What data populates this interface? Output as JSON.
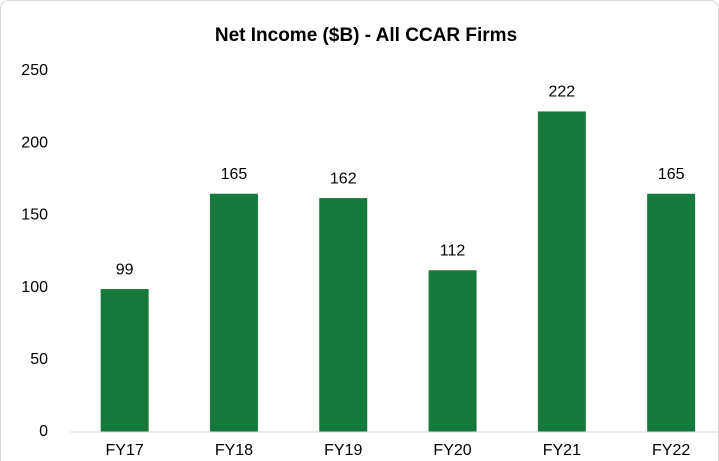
{
  "chart_data": {
    "type": "bar",
    "title": "Net Income ($B) - All CCAR Firms",
    "categories": [
      "FY17",
      "FY18",
      "FY19",
      "FY20",
      "FY21",
      "FY22"
    ],
    "values": [
      99,
      165,
      162,
      112,
      222,
      165
    ],
    "color": "#157a3c",
    "ylim": [
      0,
      250
    ],
    "yticks": [
      0,
      50,
      100,
      150,
      200,
      250
    ],
    "grid": false
  }
}
